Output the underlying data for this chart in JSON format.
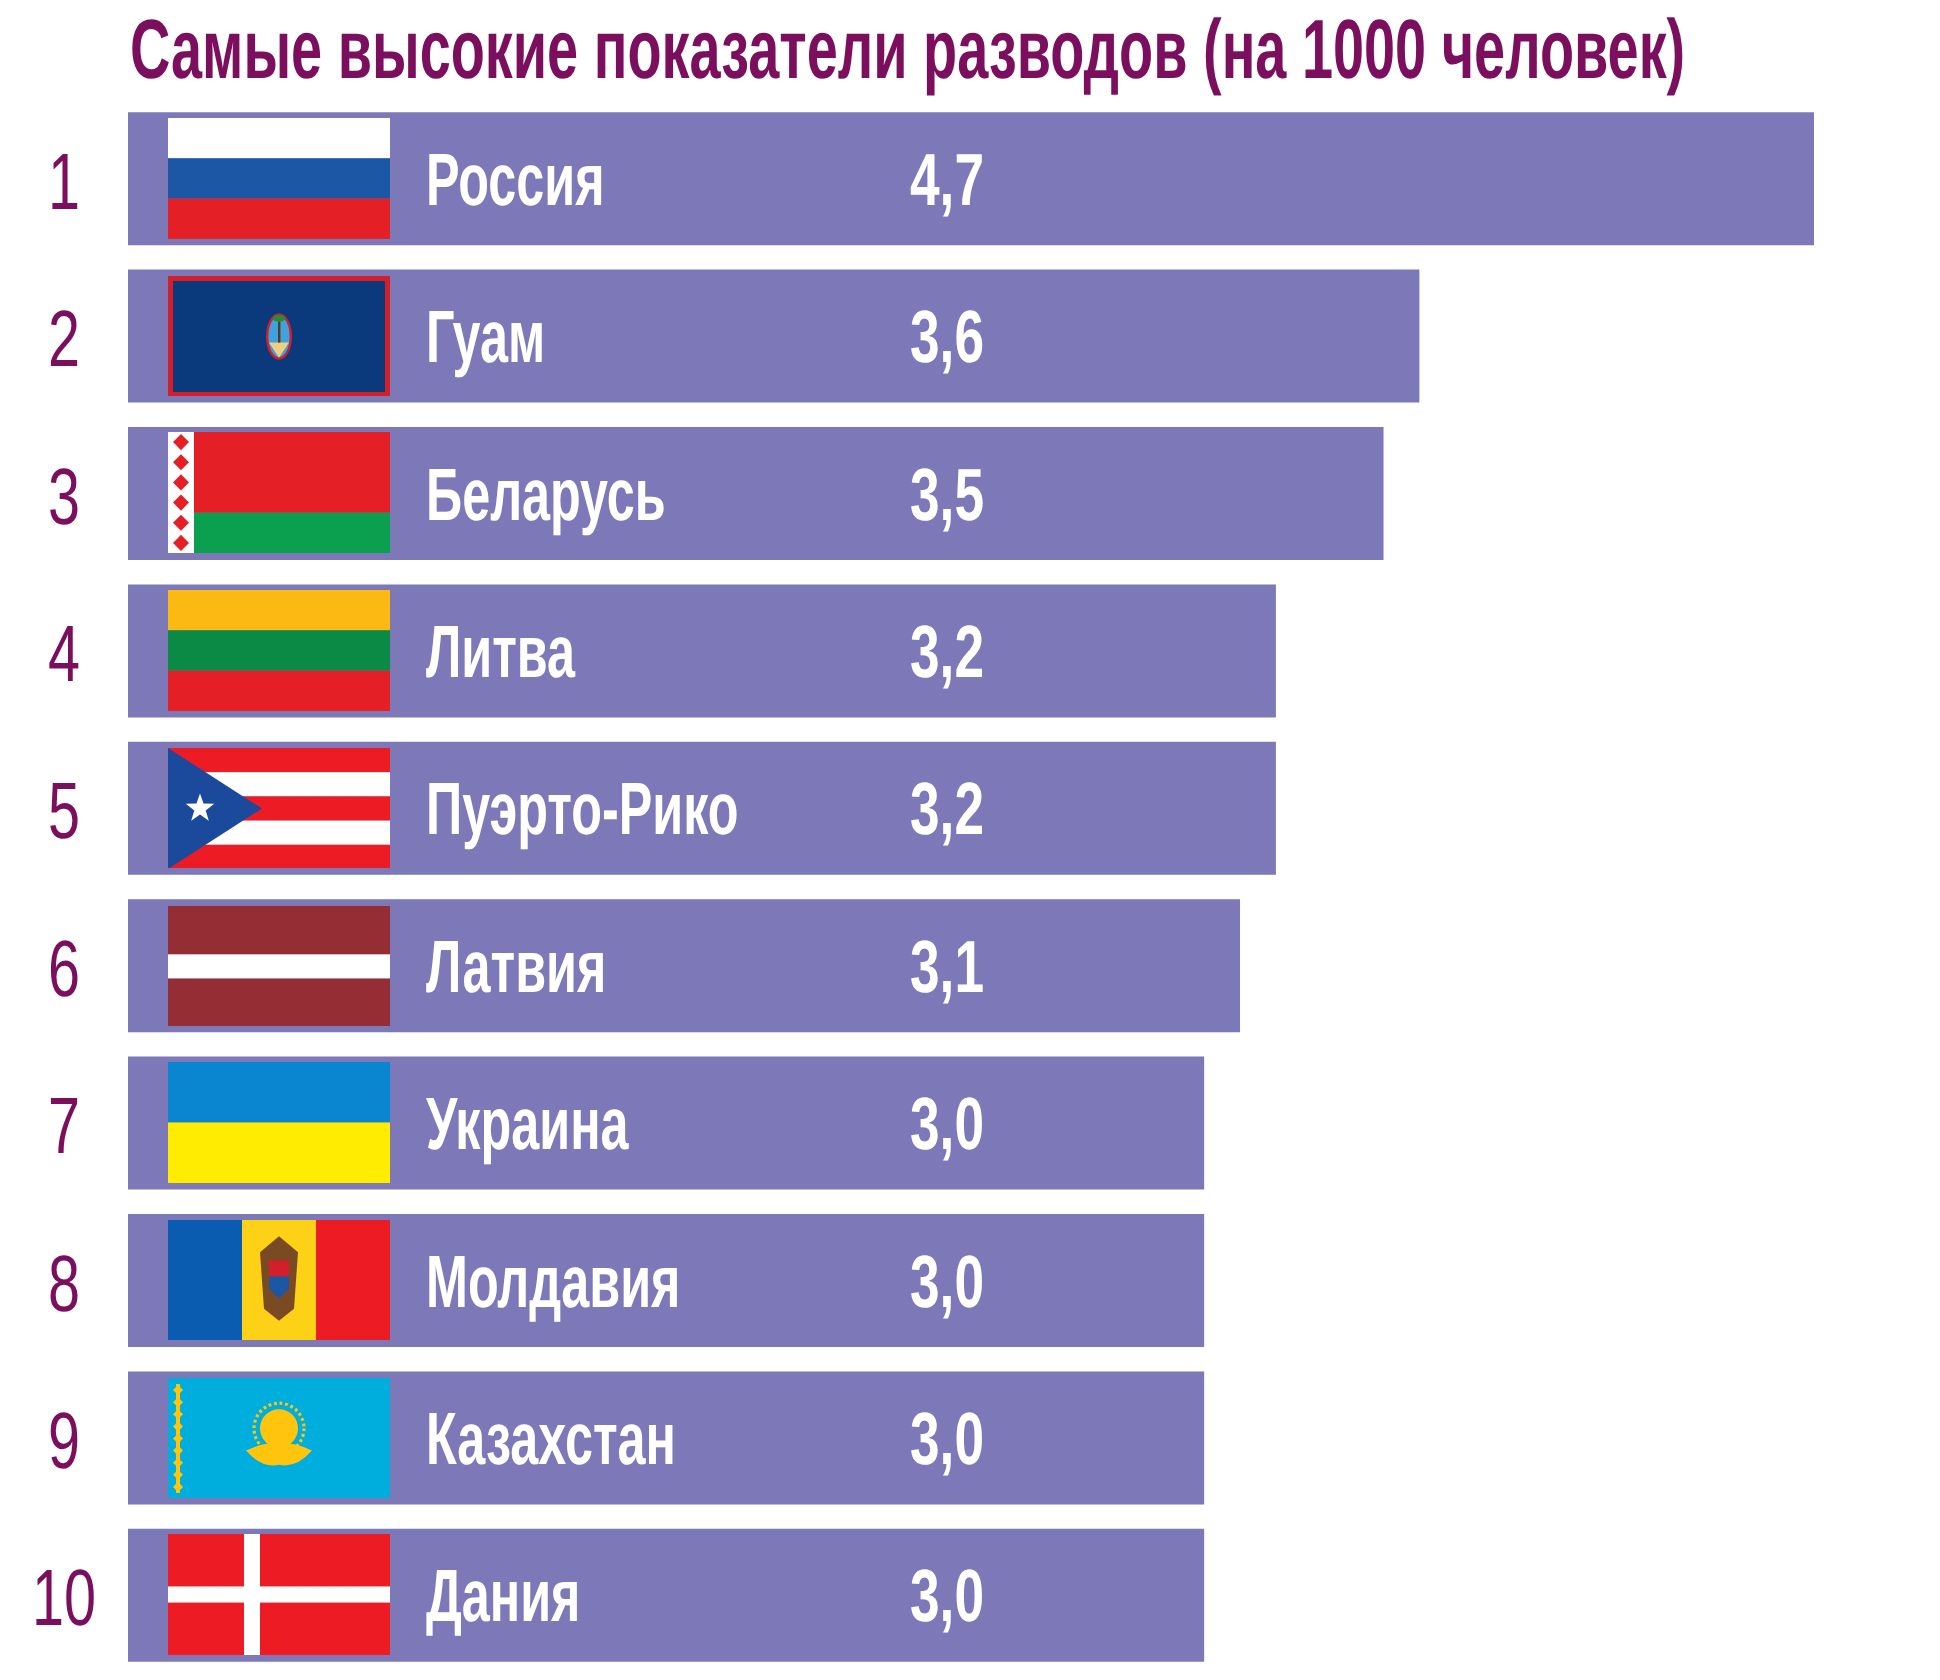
{
  "chart_data": {
    "type": "bar",
    "orientation": "horizontal",
    "title": "Самые высокие показатели разводов (на 1000 человек)",
    "categories": [
      "Россия",
      "Гуам",
      "Беларусь",
      "Литва",
      "Пуэрто-Рико",
      "Латвия",
      "Украина",
      "Молдавия",
      "Казахстан",
      "Дания"
    ],
    "values": [
      4.7,
      3.6,
      3.5,
      3.2,
      3.2,
      3.1,
      3.0,
      3.0,
      3.0,
      3.0
    ],
    "color": "#7d78b7",
    "value_labels": [
      "4,7",
      "3,6",
      "3,5",
      "3,2",
      "3,2",
      "3,1",
      "3,0",
      "3,0",
      "3,0",
      "3,0"
    ],
    "annotations": [
      "1",
      "2",
      "3",
      "4",
      "5",
      "6",
      "7",
      "8",
      "9",
      "10"
    ]
  }
}
